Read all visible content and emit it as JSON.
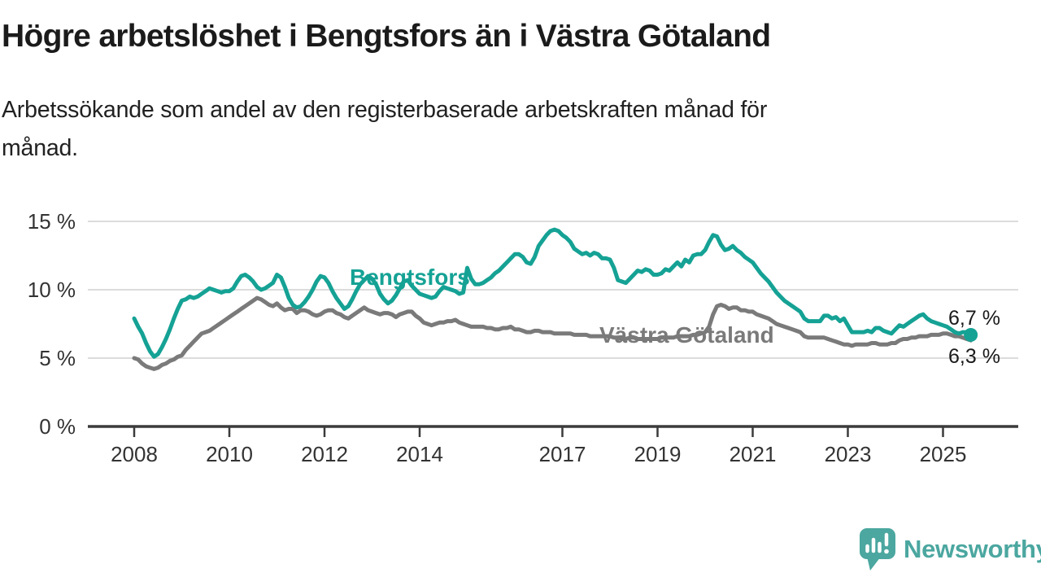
{
  "header": {
    "title": "Högre arbetslöshet i Bengtsfors än i Västra Götaland",
    "subtitle_line1": "Arbetssökande som andel av den registerbaserade arbetskraften månad för",
    "subtitle_line2": "månad."
  },
  "footer": {
    "brand": "Newsworthy",
    "logo_icon": "bar-chart-speech-bubble-icon",
    "brand_color": "#4BA7A0"
  },
  "colors": {
    "teal_line": "#15A295",
    "gray_line": "#7A7A7A",
    "grid": "#DCDCDC",
    "axis": "#3B3B3B",
    "label_text": "#1A1A1A",
    "tick_text": "#333333"
  },
  "chart_data": {
    "type": "line",
    "unit": "%",
    "grid": "horizontal",
    "legend": "inline-labels",
    "start_year": 2008,
    "points_per_year": 12,
    "x_axis": {
      "tick_years": [
        2008,
        2010,
        2012,
        2014,
        2017,
        2019,
        2021,
        2023,
        2025
      ],
      "tick_labels": [
        "2008",
        "2010",
        "2012",
        "2014",
        "2017",
        "2019",
        "2021",
        "2023",
        "2025"
      ]
    },
    "y_axis": {
      "tick_values": [
        0,
        5,
        10,
        15
      ],
      "tick_labels": [
        "0 %",
        "5 %",
        "10 %",
        "15 %"
      ],
      "range": [
        0,
        15.5
      ]
    },
    "series": [
      {
        "name": "Bengtsfors",
        "color": "#15A295",
        "end_label": "6,7 %",
        "end_value": 6.7,
        "end_marker": true,
        "values": [
          7.9,
          7.3,
          6.8,
          6.1,
          5.5,
          5.1,
          5.3,
          5.8,
          6.4,
          7.1,
          7.9,
          8.6,
          9.2,
          9.3,
          9.5,
          9.4,
          9.5,
          9.7,
          9.9,
          10.1,
          10.0,
          9.9,
          9.8,
          9.9,
          9.9,
          10.1,
          10.6,
          11.0,
          11.1,
          10.9,
          10.6,
          10.2,
          10.0,
          10.1,
          10.3,
          10.5,
          11.1,
          10.9,
          10.2,
          9.4,
          8.9,
          8.7,
          8.8,
          9.1,
          9.5,
          10.0,
          10.6,
          11.0,
          10.9,
          10.5,
          9.9,
          9.4,
          9.0,
          8.6,
          8.8,
          9.3,
          9.9,
          10.4,
          10.7,
          11.0,
          10.8,
          10.4,
          9.7,
          9.3,
          9.0,
          9.2,
          9.6,
          10.1,
          10.6,
          10.7,
          10.3,
          10.0,
          9.7,
          9.6,
          9.5,
          9.4,
          9.5,
          9.9,
          10.2,
          10.1,
          10.0,
          9.9,
          9.7,
          9.8,
          11.6,
          10.8,
          10.4,
          10.4,
          10.5,
          10.7,
          10.9,
          11.2,
          11.4,
          11.7,
          12.0,
          12.3,
          12.6,
          12.6,
          12.4,
          12.0,
          11.9,
          12.4,
          13.2,
          13.6,
          14.0,
          14.3,
          14.4,
          14.3,
          14.0,
          13.8,
          13.5,
          13.0,
          12.8,
          12.6,
          12.7,
          12.5,
          12.7,
          12.6,
          12.3,
          12.3,
          12.2,
          11.6,
          10.7,
          10.6,
          10.5,
          10.8,
          11.1,
          11.4,
          11.3,
          11.5,
          11.4,
          11.1,
          11.1,
          11.2,
          11.5,
          11.4,
          11.7,
          12.0,
          11.7,
          12.2,
          12.0,
          12.5,
          12.6,
          12.6,
          12.9,
          13.5,
          14.0,
          13.9,
          13.3,
          12.9,
          13.0,
          13.2,
          12.9,
          12.7,
          12.4,
          12.2,
          12.0,
          11.6,
          11.2,
          10.9,
          10.6,
          10.2,
          9.8,
          9.5,
          9.2,
          9.0,
          8.8,
          8.6,
          8.4,
          7.9,
          7.7,
          7.7,
          7.7,
          7.7,
          8.1,
          8.1,
          7.9,
          8.0,
          7.7,
          7.9,
          7.4,
          6.9,
          6.9,
          6.9,
          6.9,
          7.0,
          6.9,
          7.2,
          7.2,
          7.0,
          6.9,
          6.8,
          7.1,
          7.4,
          7.3,
          7.5,
          7.7,
          7.9,
          8.1,
          8.2,
          7.9,
          7.7,
          7.6,
          7.5,
          7.4,
          7.3,
          7.1,
          6.9,
          6.8,
          6.9,
          6.9,
          6.7
        ]
      },
      {
        "name": "Västra Götaland",
        "color": "#7A7A7A",
        "end_label": "6,3 %",
        "end_value": 6.3,
        "end_marker": false,
        "values": [
          5.0,
          4.9,
          4.6,
          4.4,
          4.3,
          4.2,
          4.3,
          4.5,
          4.6,
          4.8,
          4.9,
          5.1,
          5.2,
          5.6,
          5.9,
          6.2,
          6.5,
          6.8,
          6.9,
          7.0,
          7.2,
          7.4,
          7.6,
          7.8,
          8.0,
          8.2,
          8.4,
          8.6,
          8.8,
          9.0,
          9.2,
          9.4,
          9.3,
          9.1,
          8.9,
          8.8,
          9.0,
          8.7,
          8.5,
          8.6,
          8.6,
          8.3,
          8.5,
          8.5,
          8.4,
          8.2,
          8.1,
          8.2,
          8.4,
          8.5,
          8.5,
          8.3,
          8.2,
          8.0,
          7.9,
          8.1,
          8.3,
          8.5,
          8.7,
          8.5,
          8.4,
          8.3,
          8.2,
          8.3,
          8.3,
          8.2,
          8.0,
          8.2,
          8.3,
          8.4,
          8.4,
          8.1,
          7.9,
          7.6,
          7.5,
          7.4,
          7.5,
          7.6,
          7.6,
          7.7,
          7.7,
          7.8,
          7.6,
          7.5,
          7.4,
          7.3,
          7.3,
          7.3,
          7.3,
          7.2,
          7.2,
          7.1,
          7.1,
          7.2,
          7.2,
          7.3,
          7.1,
          7.1,
          7.0,
          6.9,
          6.9,
          7.0,
          7.0,
          6.9,
          6.9,
          6.9,
          6.8,
          6.8,
          6.8,
          6.8,
          6.8,
          6.7,
          6.7,
          6.7,
          6.7,
          6.6,
          6.6,
          6.6,
          6.6,
          6.6,
          6.6,
          6.5,
          6.5,
          6.4,
          6.4,
          6.5,
          6.5,
          6.4,
          6.4,
          6.4,
          6.4,
          6.4,
          6.4,
          6.5,
          6.5,
          6.5,
          6.5,
          6.6,
          6.6,
          6.6,
          6.6,
          6.7,
          6.7,
          6.8,
          6.9,
          7.3,
          8.2,
          8.8,
          8.9,
          8.8,
          8.6,
          8.7,
          8.7,
          8.5,
          8.5,
          8.4,
          8.4,
          8.2,
          8.1,
          8.0,
          7.9,
          7.7,
          7.5,
          7.4,
          7.3,
          7.2,
          7.1,
          7.0,
          6.9,
          6.6,
          6.5,
          6.5,
          6.5,
          6.5,
          6.5,
          6.4,
          6.3,
          6.2,
          6.1,
          6.0,
          6.0,
          5.9,
          6.0,
          6.0,
          6.0,
          6.0,
          6.1,
          6.1,
          6.0,
          6.0,
          6.0,
          6.1,
          6.1,
          6.3,
          6.4,
          6.4,
          6.5,
          6.5,
          6.6,
          6.6,
          6.6,
          6.7,
          6.7,
          6.7,
          6.8,
          6.8,
          6.7,
          6.6,
          6.6,
          6.5,
          6.4,
          6.3
        ]
      }
    ]
  }
}
